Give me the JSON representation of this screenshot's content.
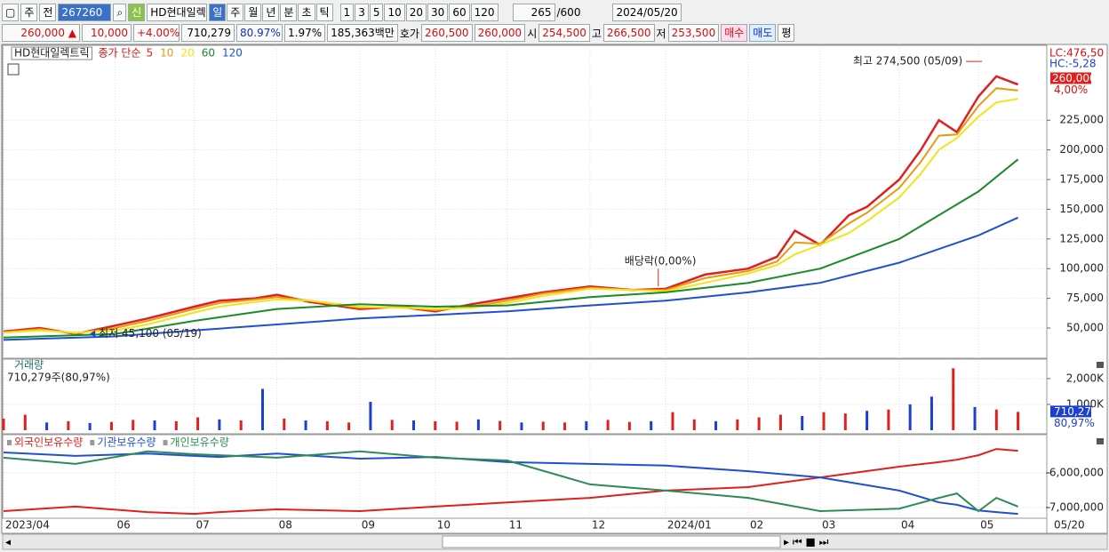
{
  "toolbar": {
    "market": "주",
    "prev": "전",
    "code": "267260",
    "credit": "신",
    "name": "HD현대일렉",
    "periods": [
      "일",
      "주",
      "월",
      "년",
      "분",
      "초",
      "틱"
    ],
    "active_period": "일",
    "intervals": [
      "1",
      "3",
      "5",
      "10",
      "20",
      "30",
      "60",
      "120"
    ],
    "count": "265",
    "max": "/600",
    "date": "2024/05/20"
  },
  "quote": {
    "price": "260,000 ▲",
    "change": "10,000",
    "change_pct": "+4.00%",
    "volume": "710,279",
    "volume_ratio": "80.97%",
    "turnover": "1.97%",
    "amount": "185,363백만",
    "ask_label": "호가",
    "ask": "260,500",
    "bid": "260,000",
    "open_label": "시",
    "open": "254,500",
    "high_label": "고",
    "high": "266,500",
    "low_label": "저",
    "low": "253,500",
    "buy": "매수",
    "sell": "매도",
    "avg": "평"
  },
  "chart_data": [
    {
      "type": "line",
      "title": "HD현대일렉트릭",
      "subtitle": "종가 단순",
      "xlim": [
        0,
        290
      ],
      "xticks": [
        {
          "value": 0,
          "label": "2023/04"
        },
        {
          "value": 31,
          "label": "06"
        },
        {
          "value": 53,
          "label": "07"
        },
        {
          "value": 76,
          "label": "08"
        },
        {
          "value": 99,
          "label": "09"
        },
        {
          "value": 120,
          "label": "10"
        },
        {
          "value": 140,
          "label": "11"
        },
        {
          "value": 163,
          "label": "12"
        },
        {
          "value": 184,
          "label": "2024/01"
        },
        {
          "value": 207,
          "label": "02"
        },
        {
          "value": 227,
          "label": "03"
        },
        {
          "value": 249,
          "label": "04"
        },
        {
          "value": 271,
          "label": "05"
        }
      ],
      "x_end_label": "05/20",
      "ylim": [
        24550,
        287300
      ],
      "yticks": [
        {
          "value": 50000,
          "label": "50,000"
        },
        {
          "value": 75000,
          "label": "75,000"
        },
        {
          "value": 100000,
          "label": "100,000"
        },
        {
          "value": 125000,
          "label": "125,000"
        },
        {
          "value": 150000,
          "label": "150,000"
        },
        {
          "value": 175000,
          "label": "175,000"
        },
        {
          "value": 200000,
          "label": "200,000"
        },
        {
          "value": 225000,
          "label": "225,000"
        }
      ],
      "grid": true,
      "series": [
        {
          "name": "5",
          "color": "#e0201e",
          "x": [
            0,
            10,
            20,
            31,
            40,
            53,
            60,
            70,
            76,
            85,
            99,
            110,
            120,
            130,
            140,
            150,
            163,
            175,
            184,
            195,
            207,
            215,
            220,
            227,
            235,
            240,
            249,
            255,
            260,
            265,
            271,
            276,
            282
          ],
          "values": [
            47000,
            50000,
            45000,
            52000,
            58000,
            68000,
            73000,
            75000,
            78000,
            72000,
            66000,
            68000,
            64000,
            70000,
            75000,
            80000,
            85000,
            82000,
            83000,
            95000,
            100000,
            110000,
            132000,
            120000,
            145000,
            152000,
            175000,
            200000,
            225000,
            215000,
            245000,
            262000,
            255000
          ]
        },
        {
          "name": "10",
          "color": "#e89a10",
          "x": [
            0,
            10,
            20,
            31,
            40,
            53,
            60,
            70,
            76,
            85,
            99,
            110,
            120,
            130,
            140,
            150,
            163,
            175,
            184,
            195,
            207,
            215,
            220,
            227,
            235,
            240,
            249,
            255,
            260,
            265,
            271,
            276,
            282
          ],
          "values": [
            46500,
            49000,
            45500,
            50000,
            56000,
            66000,
            71000,
            74000,
            76000,
            73000,
            67000,
            68000,
            65000,
            68000,
            73000,
            79000,
            84000,
            82000,
            82000,
            92000,
            98000,
            106000,
            122000,
            121000,
            138000,
            147000,
            168000,
            190000,
            212000,
            213000,
            237000,
            252000,
            250000
          ]
        },
        {
          "name": "20",
          "color": "#f2e41a",
          "x": [
            0,
            10,
            20,
            31,
            40,
            53,
            60,
            70,
            76,
            85,
            99,
            110,
            120,
            130,
            140,
            150,
            163,
            175,
            184,
            195,
            207,
            215,
            220,
            227,
            235,
            240,
            249,
            255,
            260,
            265,
            271,
            276,
            282
          ],
          "values": [
            46000,
            48000,
            46000,
            48000,
            53000,
            63000,
            68000,
            72000,
            74000,
            73000,
            68000,
            67000,
            66000,
            67000,
            71000,
            77000,
            83000,
            82000,
            81000,
            88000,
            96000,
            103000,
            112000,
            120000,
            130000,
            140000,
            160000,
            180000,
            200000,
            210000,
            228000,
            240000,
            243000
          ]
        },
        {
          "name": "60",
          "color": "#1a8a2a",
          "x": [
            0,
            31,
            53,
            76,
            99,
            120,
            140,
            163,
            184,
            207,
            227,
            249,
            271,
            282
          ],
          "values": [
            42000,
            45000,
            56000,
            66000,
            70000,
            68000,
            69000,
            76000,
            80000,
            88000,
            100000,
            125000,
            165000,
            192000
          ]
        },
        {
          "name": "120",
          "color": "#2050d0",
          "x": [
            0,
            31,
            53,
            76,
            99,
            120,
            140,
            163,
            184,
            207,
            227,
            249,
            271,
            282
          ],
          "values": [
            40000,
            43000,
            48000,
            53000,
            58000,
            61000,
            64000,
            69000,
            73000,
            80000,
            88000,
            105000,
            128000,
            143000
          ]
        }
      ],
      "annotations": [
        {
          "text": "최고 274,500 (05/09)",
          "x": 272,
          "y": 274500,
          "color": "#e0201e"
        },
        {
          "text": "최저 45,100 (05/19)",
          "x": 24,
          "y": 45100,
          "color": "#1c3fd1"
        },
        {
          "text": "배당락(0,00%)",
          "x": 182,
          "y": 85000,
          "color": "#e0201e"
        }
      ],
      "lc": "LC:476,50",
      "hc": "HC:-5,28",
      "last_price": {
        "value": 260000,
        "label": "260,000"
      },
      "last_change": "4,00%"
    },
    {
      "type": "bar",
      "title": "거래량",
      "subtitle": "710,279주(80,97%)",
      "xlim": [
        0,
        290
      ],
      "ylim": [
        0,
        2650000
      ],
      "yticks": [
        {
          "value": 1000000,
          "label": "1,000K"
        },
        {
          "value": 2000000,
          "label": "2,000K"
        }
      ],
      "grid": true,
      "x": [
        0,
        6,
        12,
        18,
        24,
        30,
        36,
        42,
        48,
        54,
        60,
        66,
        72,
        78,
        84,
        90,
        96,
        102,
        108,
        114,
        120,
        126,
        132,
        138,
        144,
        150,
        156,
        162,
        168,
        174,
        180,
        186,
        192,
        198,
        204,
        210,
        216,
        222,
        228,
        234,
        240,
        246,
        252,
        258,
        264,
        270,
        276,
        282
      ],
      "values": [
        450000,
        600000,
        300000,
        350000,
        280000,
        320000,
        400000,
        380000,
        350000,
        500000,
        420000,
        380000,
        1600000,
        450000,
        380000,
        350000,
        300000,
        1100000,
        400000,
        380000,
        350000,
        330000,
        420000,
        360000,
        300000,
        330000,
        300000,
        350000,
        400000,
        320000,
        350000,
        700000,
        420000,
        350000,
        420000,
        500000,
        600000,
        550000,
        700000,
        650000,
        750000,
        800000,
        1000000,
        1300000,
        2400000,
        900000,
        800000,
        710279
      ],
      "colors": [
        "#e0201e",
        "#e0201e",
        "#1c3fd1",
        "#e0201e",
        "#1c3fd1",
        "#e0201e",
        "#e0201e",
        "#1c3fd1",
        "#e0201e",
        "#e0201e",
        "#1c3fd1",
        "#e0201e",
        "#1c3fd1",
        "#e0201e",
        "#1c3fd1",
        "#e0201e",
        "#e0201e",
        "#1c3fd1",
        "#e0201e",
        "#1c3fd1",
        "#e0201e",
        "#e0201e",
        "#1c3fd1",
        "#e0201e",
        "#1c3fd1",
        "#e0201e",
        "#e0201e",
        "#1c3fd1",
        "#e0201e",
        "#e0201e",
        "#1c3fd1",
        "#e0201e",
        "#e0201e",
        "#1c3fd1",
        "#e0201e",
        "#e0201e",
        "#e0201e",
        "#1c3fd1",
        "#e0201e",
        "#e0201e",
        "#1c3fd1",
        "#e0201e",
        "#1c3fd1",
        "#1c3fd1",
        "#e0201e",
        "#1c3fd1",
        "#e0201e",
        "#e0201e"
      ],
      "last_volume": {
        "value": 710279,
        "label": "710,279"
      },
      "last_ratio": "80,97%"
    },
    {
      "type": "line",
      "xlim": [
        0,
        290
      ],
      "ylim": [
        -7280000,
        -5000000
      ],
      "yticks": [
        {
          "value": -6000000,
          "label": "-6,000,000"
        },
        {
          "value": -7000000,
          "label": "-7,000,000"
        }
      ],
      "grid": true,
      "series": [
        {
          "name": "외국인보유수량",
          "color": "#e0201e",
          "x": [
            0,
            20,
            40,
            53,
            60,
            76,
            99,
            120,
            140,
            163,
            184,
            207,
            227,
            249,
            260,
            265,
            271,
            276,
            282
          ],
          "values": [
            -7100000,
            -6970000,
            -7130000,
            -7180000,
            -7130000,
            -7050000,
            -7100000,
            -6970000,
            -6850000,
            -6720000,
            -6510000,
            -6410000,
            -6130000,
            -5820000,
            -5690000,
            -5620000,
            -5490000,
            -5310000,
            -5360000
          ]
        },
        {
          "name": "기관보유수량",
          "color": "#2050d0",
          "x": [
            0,
            20,
            40,
            53,
            60,
            76,
            99,
            120,
            140,
            163,
            184,
            207,
            227,
            249,
            260,
            265,
            271,
            276,
            282
          ],
          "values": [
            -5410000,
            -5510000,
            -5440000,
            -5510000,
            -5540000,
            -5440000,
            -5590000,
            -5540000,
            -5690000,
            -5740000,
            -5790000,
            -5950000,
            -6130000,
            -6510000,
            -6850000,
            -6920000,
            -7080000,
            -7130000,
            -7180000
          ]
        },
        {
          "name": "개인보유수량",
          "color": "#2e8b57",
          "x": [
            0,
            20,
            40,
            53,
            60,
            76,
            99,
            120,
            140,
            163,
            184,
            207,
            227,
            249,
            260,
            265,
            271,
            276,
            282
          ],
          "values": [
            -5560000,
            -5740000,
            -5380000,
            -5460000,
            -5490000,
            -5560000,
            -5380000,
            -5560000,
            -5640000,
            -6330000,
            -6510000,
            -6720000,
            -7100000,
            -7030000,
            -6720000,
            -6590000,
            -7100000,
            -6720000,
            -6970000
          ]
        }
      ]
    }
  ]
}
